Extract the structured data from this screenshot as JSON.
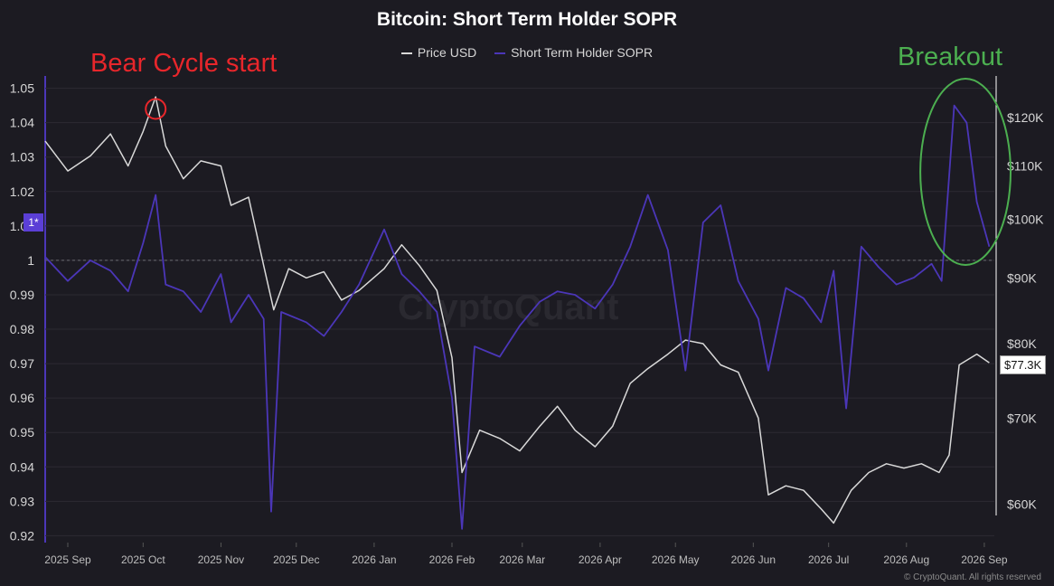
{
  "chart_data": {
    "type": "line",
    "title": "Bitcoin: Short Term Holder SOPR",
    "legend": [
      "Price USD",
      "Short Term Holder SOPR"
    ],
    "colors": {
      "background": "#1c1b22",
      "price": "#d9d9d9",
      "sopr": "#4b36b8",
      "grid": "#2c2b33",
      "bear_annotation": "#e8262b",
      "breakout_annotation": "#4caf50"
    },
    "left_axis": {
      "label": "Short Term Holder SOPR",
      "ylim": [
        0.918,
        1.052
      ],
      "ticks": [
        "1.05",
        "1.04",
        "1.03",
        "1.02",
        "1.01",
        "1",
        "0.99",
        "0.98",
        "0.97",
        "0.96",
        "0.95",
        "0.94",
        "0.93",
        "0.92"
      ],
      "baseline_label": "1*"
    },
    "right_axis": {
      "label": "Price USD",
      "scale": "log",
      "ylim": [
        56000,
        128000
      ],
      "ticks": [
        "$120K",
        "$110K",
        "$100K",
        "$90K",
        "$80K",
        "$70K",
        "$60K"
      ],
      "current_price_label": "$77.3K"
    },
    "x_axis": {
      "ticks": [
        "2025 Sep",
        "2025 Oct",
        "2025 Nov",
        "2025 Dec",
        "2026 Jan",
        "2026 Feb",
        "2026 Mar",
        "2026 Apr",
        "2026 May",
        "2026 Jun",
        "2026 Jul",
        "2026 Aug",
        "2026 Sep"
      ],
      "start": "2025-08-23",
      "end": "2026-09-05"
    },
    "series": [
      {
        "name": "Price USD",
        "axis": "right",
        "points": [
          [
            "2025-08-23",
            115000
          ],
          [
            "2025-09-01",
            109000
          ],
          [
            "2025-09-10",
            112000
          ],
          [
            "2025-09-18",
            116500
          ],
          [
            "2025-09-25",
            110000
          ],
          [
            "2025-10-01",
            117000
          ],
          [
            "2025-10-06",
            124500
          ],
          [
            "2025-10-10",
            114000
          ],
          [
            "2025-10-17",
            107500
          ],
          [
            "2025-10-24",
            111000
          ],
          [
            "2025-11-01",
            110000
          ],
          [
            "2025-11-05",
            102500
          ],
          [
            "2025-11-12",
            104000
          ],
          [
            "2025-11-18",
            92000
          ],
          [
            "2025-11-22",
            85000
          ],
          [
            "2025-11-28",
            91500
          ],
          [
            "2025-12-05",
            90000
          ],
          [
            "2025-12-12",
            91000
          ],
          [
            "2025-12-19",
            86500
          ],
          [
            "2025-12-26",
            88000
          ],
          [
            "2026-01-05",
            91500
          ],
          [
            "2026-01-12",
            95500
          ],
          [
            "2026-01-19",
            92000
          ],
          [
            "2026-01-26",
            88000
          ],
          [
            "2026-02-01",
            78000
          ],
          [
            "2026-02-05",
            63500
          ],
          [
            "2026-02-12",
            68500
          ],
          [
            "2026-02-20",
            67500
          ],
          [
            "2026-02-28",
            66000
          ],
          [
            "2026-03-08",
            69000
          ],
          [
            "2026-03-15",
            71500
          ],
          [
            "2026-03-22",
            68500
          ],
          [
            "2026-03-30",
            66500
          ],
          [
            "2026-04-06",
            69000
          ],
          [
            "2026-04-13",
            74500
          ],
          [
            "2026-04-20",
            76500
          ],
          [
            "2026-04-28",
            78500
          ],
          [
            "2026-05-05",
            80500
          ],
          [
            "2026-05-12",
            80000
          ],
          [
            "2026-05-19",
            77000
          ],
          [
            "2026-05-26",
            76000
          ],
          [
            "2026-06-03",
            70000
          ],
          [
            "2026-06-07",
            61000
          ],
          [
            "2026-06-14",
            62000
          ],
          [
            "2026-06-21",
            61500
          ],
          [
            "2026-06-28",
            59500
          ],
          [
            "2026-07-03",
            58000
          ],
          [
            "2026-07-10",
            61500
          ],
          [
            "2026-07-17",
            63500
          ],
          [
            "2026-07-24",
            64500
          ],
          [
            "2026-07-31",
            64000
          ],
          [
            "2026-08-07",
            64500
          ],
          [
            "2026-08-14",
            63500
          ],
          [
            "2026-08-18",
            65500
          ],
          [
            "2026-08-22",
            77000
          ],
          [
            "2026-08-29",
            78500
          ],
          [
            "2026-09-03",
            77300
          ]
        ]
      },
      {
        "name": "Short Term Holder SOPR",
        "axis": "left",
        "baseline": 1,
        "points": [
          [
            "2025-08-23",
            1.001
          ],
          [
            "2025-09-01",
            0.994
          ],
          [
            "2025-09-10",
            1.0
          ],
          [
            "2025-09-18",
            0.997
          ],
          [
            "2025-09-25",
            0.991
          ],
          [
            "2025-10-01",
            1.005
          ],
          [
            "2025-10-06",
            1.019
          ],
          [
            "2025-10-10",
            0.993
          ],
          [
            "2025-10-17",
            0.991
          ],
          [
            "2025-10-24",
            0.985
          ],
          [
            "2025-11-01",
            0.996
          ],
          [
            "2025-11-05",
            0.982
          ],
          [
            "2025-11-12",
            0.99
          ],
          [
            "2025-11-18",
            0.983
          ],
          [
            "2025-11-21",
            0.927
          ],
          [
            "2025-11-25",
            0.985
          ],
          [
            "2025-12-05",
            0.982
          ],
          [
            "2025-12-12",
            0.978
          ],
          [
            "2025-12-19",
            0.985
          ],
          [
            "2025-12-26",
            0.993
          ],
          [
            "2026-01-05",
            1.009
          ],
          [
            "2026-01-12",
            0.996
          ],
          [
            "2026-01-19",
            0.991
          ],
          [
            "2026-01-26",
            0.985
          ],
          [
            "2026-02-01",
            0.96
          ],
          [
            "2026-02-05",
            0.922
          ],
          [
            "2026-02-10",
            0.975
          ],
          [
            "2026-02-20",
            0.972
          ],
          [
            "2026-02-28",
            0.981
          ],
          [
            "2026-03-08",
            0.988
          ],
          [
            "2026-03-15",
            0.991
          ],
          [
            "2026-03-22",
            0.99
          ],
          [
            "2026-03-30",
            0.986
          ],
          [
            "2026-04-06",
            0.993
          ],
          [
            "2026-04-13",
            1.004
          ],
          [
            "2026-04-20",
            1.019
          ],
          [
            "2026-04-28",
            1.003
          ],
          [
            "2026-05-05",
            0.968
          ],
          [
            "2026-05-12",
            1.011
          ],
          [
            "2026-05-19",
            1.016
          ],
          [
            "2026-05-26",
            0.994
          ],
          [
            "2026-06-03",
            0.983
          ],
          [
            "2026-06-07",
            0.968
          ],
          [
            "2026-06-14",
            0.992
          ],
          [
            "2026-06-21",
            0.989
          ],
          [
            "2026-06-28",
            0.982
          ],
          [
            "2026-07-03",
            0.997
          ],
          [
            "2026-07-08",
            0.957
          ],
          [
            "2026-07-14",
            1.004
          ],
          [
            "2026-07-21",
            0.998
          ],
          [
            "2026-07-28",
            0.993
          ],
          [
            "2026-08-04",
            0.995
          ],
          [
            "2026-08-11",
            0.999
          ],
          [
            "2026-08-15",
            0.994
          ],
          [
            "2026-08-20",
            1.045
          ],
          [
            "2026-08-25",
            1.04
          ],
          [
            "2026-08-29",
            1.017
          ],
          [
            "2026-09-03",
            1.004
          ]
        ]
      }
    ],
    "annotations": [
      {
        "text": "Bear Cycle start",
        "color": "#e8262b",
        "marker": "circle",
        "at": [
          "2025-10-06",
          1.044
        ]
      },
      {
        "text": "Breakout",
        "color": "#4caf50",
        "marker": "ellipse",
        "from": "2026-08-13",
        "to": "2026-09-05"
      }
    ],
    "watermark": "CryptoQuant",
    "copyright": "© CryptoQuant. All rights reserved"
  }
}
